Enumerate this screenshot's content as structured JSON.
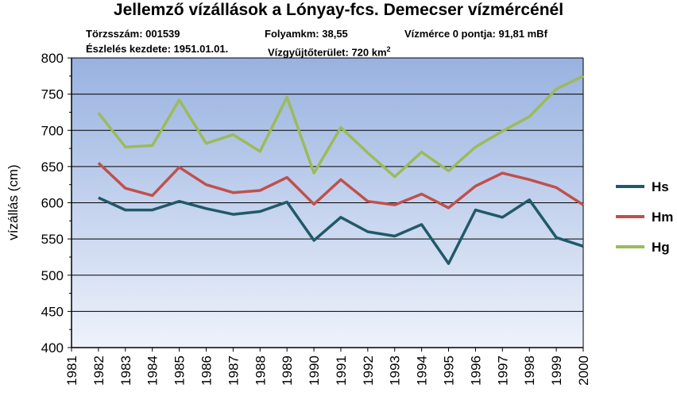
{
  "chart_data": {
    "type": "line",
    "title": "Jellemző vízállások a Lónyay-fcs. Demecser vízmércénél",
    "ylabel": "vízállás (cm)",
    "xlabel": "",
    "ylim": [
      400,
      800
    ],
    "yticks": [
      400,
      450,
      500,
      550,
      600,
      650,
      700,
      750,
      800
    ],
    "categories": [
      "1981",
      "1982",
      "1983",
      "1984",
      "1985",
      "1986",
      "1987",
      "1988",
      "1989",
      "1990",
      "1991",
      "1992",
      "1993",
      "1994",
      "1995",
      "1996",
      "1997",
      "1998",
      "1999",
      "2000"
    ],
    "grid": true,
    "legend": "right",
    "series": [
      {
        "name": "Hs",
        "color": "#215968",
        "values": [
          null,
          607,
          590,
          590,
          602,
          592,
          584,
          588,
          601,
          548,
          580,
          560,
          554,
          570,
          516,
          590,
          580,
          604,
          552,
          540
        ]
      },
      {
        "name": "Hm",
        "color": "#C0504D",
        "values": [
          null,
          655,
          620,
          610,
          649,
          625,
          614,
          617,
          635,
          598,
          632,
          602,
          597,
          612,
          593,
          623,
          641,
          632,
          621,
          597
        ]
      },
      {
        "name": "Hg",
        "color": "#9BBB59",
        "values": [
          null,
          724,
          677,
          679,
          742,
          682,
          694,
          671,
          746,
          641,
          704,
          669,
          636,
          670,
          644,
          677,
          699,
          719,
          757,
          775
        ]
      }
    ]
  },
  "info": {
    "torzsszam": "Törzsszám: 001539",
    "folyamkm": "Folyamkm: 38,55",
    "vizmerce": "Vízmérce 0 pontja: 91,81 mBf",
    "eszleles": "Észlelés kezdete: 1951.01.01.",
    "vizgyujto_prefix": "Vízgyűjtőterület: 720 km",
    "vizgyujto_sup": "2"
  }
}
